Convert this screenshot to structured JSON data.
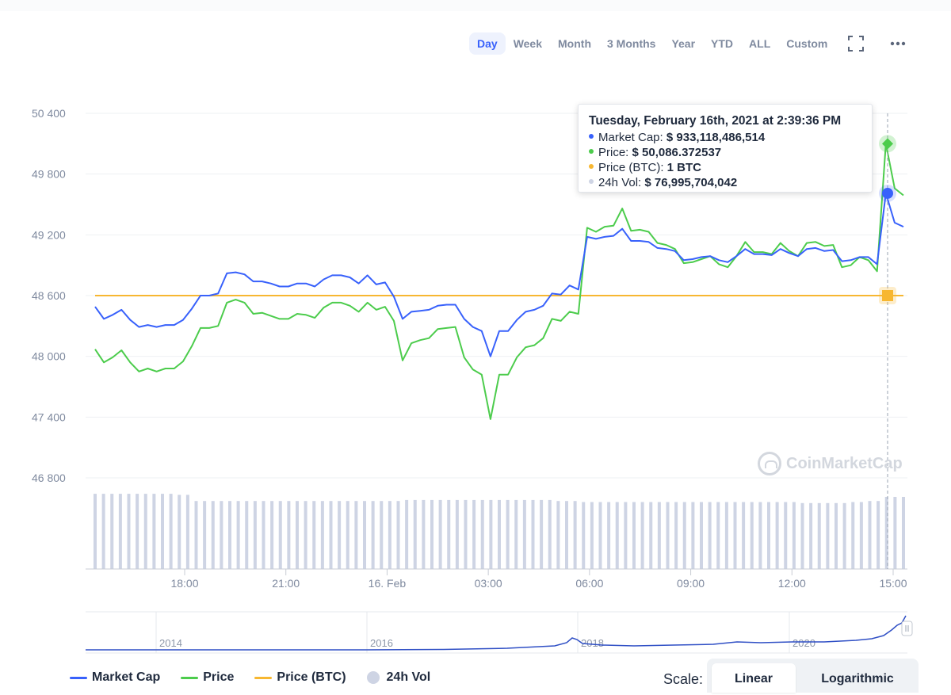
{
  "toolbar": {
    "ranges": [
      "Day",
      "Week",
      "Month",
      "3 Months",
      "Year",
      "YTD",
      "ALL",
      "Custom"
    ],
    "active_range": "Day",
    "fullscreen_icon": "fullscreen-icon",
    "more_icon": "more-options-icon"
  },
  "tooltip": {
    "title": "Tuesday, February 16th, 2021 at 2:39:36 PM",
    "rows": [
      {
        "label": "Market Cap:",
        "value": "$ 933,118,486,514",
        "color": "#3861fb"
      },
      {
        "label": "Price:",
        "value": "$ 50,086.372537",
        "color": "#4ccc4c"
      },
      {
        "label": "Price (BTC):",
        "value": "1 BTC",
        "color": "#f7b731"
      },
      {
        "label": "24h Vol:",
        "value": "$ 76,995,704,042",
        "color": "#ced4e4"
      }
    ]
  },
  "watermark": "CoinMarketCap",
  "legend": [
    {
      "name": "Market Cap",
      "color": "#3861fb",
      "kind": "line"
    },
    {
      "name": "Price",
      "color": "#4ccc4c",
      "kind": "line"
    },
    {
      "name": "Price (BTC)",
      "color": "#f7b731",
      "kind": "line"
    },
    {
      "name": "24h Vol",
      "color": "#ced4e4",
      "kind": "dot"
    }
  ],
  "scale": {
    "label": "Scale:",
    "options": [
      "Linear",
      "Logarithmic"
    ],
    "active": "Linear"
  },
  "chart_data": {
    "type": "line",
    "title": "",
    "y_ticks": [
      "50 400",
      "49 800",
      "49 200",
      "48 600",
      "48 000",
      "47 400",
      "46 800"
    ],
    "ylim": [
      46800,
      50400
    ],
    "x_ticks": [
      "18:00",
      "21:00",
      "16. Feb",
      "03:00",
      "06:00",
      "09:00",
      "12:00",
      "15:00"
    ],
    "x_start": "15. Feb 15:15",
    "x_end": "16. Feb 15:15",
    "grid": true,
    "legend_position": "bottom-left",
    "series": [
      {
        "name": "Price",
        "color": "#4ccc4c",
        "values": [
          48070,
          47940,
          47990,
          48060,
          47940,
          47850,
          47880,
          47850,
          47880,
          47880,
          47950,
          48100,
          48280,
          48280,
          48300,
          48530,
          48560,
          48530,
          48420,
          48430,
          48400,
          48370,
          48370,
          48420,
          48410,
          48380,
          48480,
          48530,
          48530,
          48500,
          48440,
          48530,
          48460,
          48490,
          48350,
          47960,
          48130,
          48160,
          48180,
          48270,
          48280,
          48290,
          47990,
          47870,
          47820,
          47380,
          47820,
          47820,
          47990,
          48090,
          48110,
          48180,
          48370,
          48350,
          48440,
          48420,
          49270,
          49230,
          49280,
          49290,
          49460,
          49240,
          49250,
          49230,
          49120,
          49100,
          49060,
          48920,
          48930,
          48960,
          48990,
          48910,
          48880,
          48990,
          49130,
          49030,
          49030,
          49010,
          49120,
          49040,
          48990,
          49120,
          49130,
          49090,
          49100,
          48880,
          48900,
          48980,
          48950,
          48840,
          50100,
          49660,
          49590
        ]
      },
      {
        "name": "Market Cap",
        "color": "#3861fb",
        "values": [
          48490,
          48370,
          48410,
          48460,
          48360,
          48290,
          48310,
          48290,
          48310,
          48310,
          48360,
          48470,
          48600,
          48600,
          48620,
          48820,
          48830,
          48810,
          48740,
          48740,
          48720,
          48690,
          48690,
          48720,
          48720,
          48690,
          48760,
          48800,
          48800,
          48780,
          48720,
          48800,
          48710,
          48730,
          48590,
          48370,
          48440,
          48450,
          48460,
          48500,
          48510,
          48510,
          48370,
          48290,
          48250,
          48000,
          48250,
          48250,
          48360,
          48440,
          48460,
          48500,
          48620,
          48610,
          48700,
          48660,
          49180,
          49160,
          49180,
          49190,
          49260,
          49140,
          49140,
          49130,
          49070,
          49060,
          49040,
          48950,
          48960,
          48980,
          48990,
          48950,
          48930,
          48990,
          49060,
          49010,
          49010,
          49000,
          49060,
          49020,
          48990,
          49060,
          49070,
          49040,
          49050,
          48940,
          48950,
          48980,
          48980,
          48910,
          49610,
          49320,
          49280
        ]
      },
      {
        "name": "Price (BTC)",
        "color": "#f7b731",
        "values": [
          48600,
          48600
        ]
      },
      {
        "name": "24h Vol",
        "color": "#ced4e4",
        "values": [
          73,
          73,
          73,
          73,
          73,
          73,
          73,
          73,
          73,
          73,
          72,
          72,
          66,
          66,
          66,
          66,
          66,
          66,
          66,
          66,
          66,
          66,
          66,
          66,
          66,
          66,
          66,
          66,
          66,
          66,
          66,
          66,
          66,
          66,
          66,
          66,
          66,
          67,
          67,
          67,
          67,
          67,
          67,
          67,
          67,
          67,
          67,
          67,
          67,
          67,
          67,
          67,
          67,
          67,
          67,
          66,
          66,
          66,
          65,
          65,
          65,
          65,
          65,
          65,
          65,
          65,
          65,
          65,
          65,
          65,
          65,
          65,
          65,
          65,
          65,
          65,
          65,
          65,
          65,
          65,
          65,
          65,
          65,
          65,
          64,
          64,
          64,
          64,
          64,
          64,
          65,
          65,
          66,
          66,
          70,
          70,
          70
        ]
      }
    ]
  },
  "navigator": {
    "x_ticks": [
      "2014",
      "2016",
      "2018",
      "2020"
    ]
  }
}
